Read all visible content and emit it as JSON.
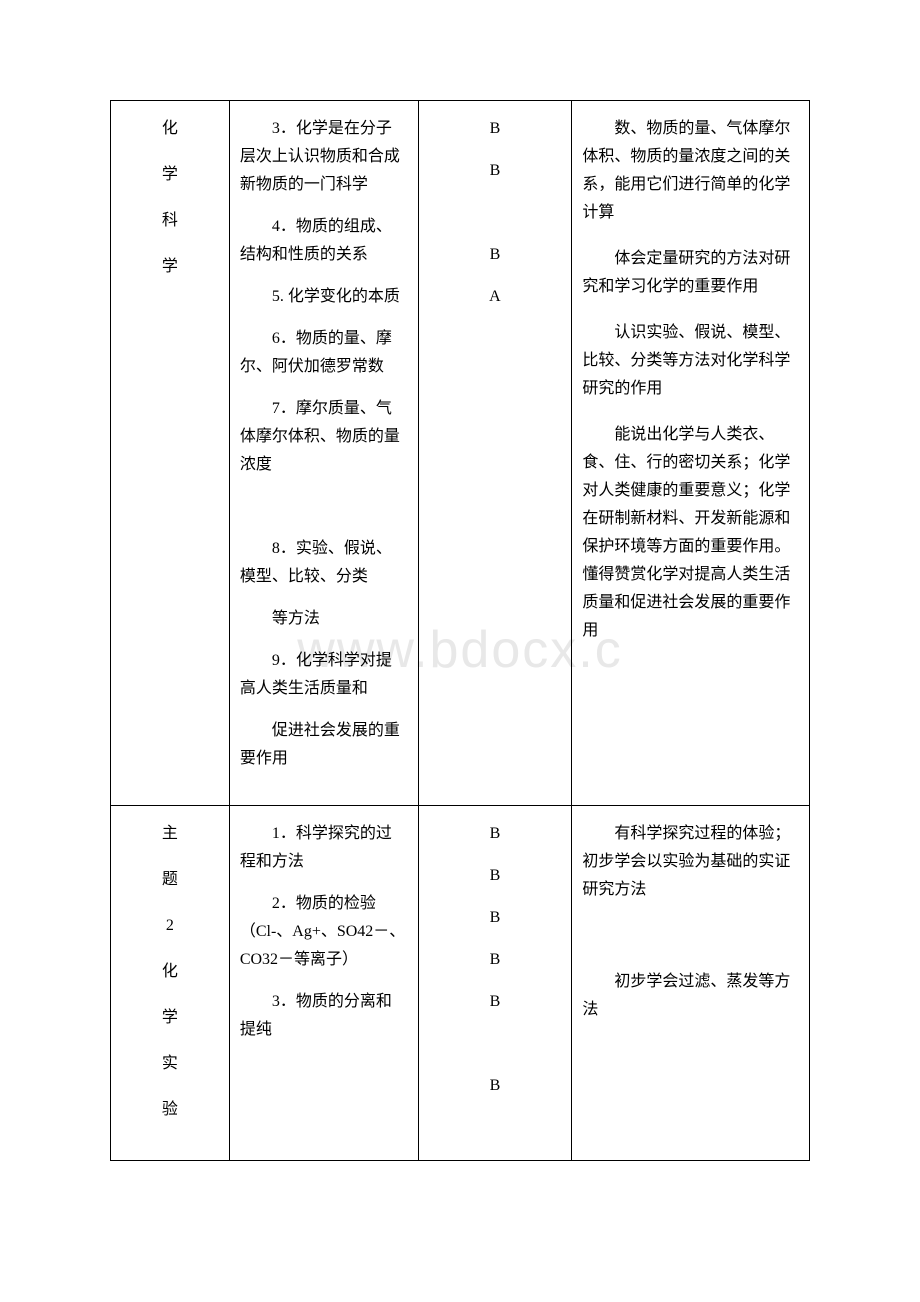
{
  "watermark": "www.bdocx.c",
  "rows": [
    {
      "col1_chars": [
        "化",
        "学",
        "科",
        "学"
      ],
      "col2_items": [
        "3．化学是在分子层次上认识物质和合成新物质的一门科学",
        "4．物质的组成、结构和性质的关系",
        "5. 化学变化的本质",
        "6．物质的量、摩尔、阿伏加德罗常数",
        "7．摩尔质量、气体摩尔体积、物质的量浓度",
        "",
        "8．实验、假说、模型、比较、分类",
        "等方法",
        "9．化学科学对提高人类生活质量和",
        "促进社会发展的重要作用"
      ],
      "col3_grades": [
        "B",
        "B",
        "",
        "B",
        "A"
      ],
      "col4_descs": [
        "数、物质的量、气体摩尔体积、物质的量浓度之间的关系，能用它们进行简单的化学计算",
        "体会定量研究的方法对研究和学习化学的重要作用",
        "认识实验、假说、模型、比较、分类等方法对化学科学研究的作用",
        "能说出化学与人类衣、食、住、行的密切关系；化学对人类健康的重要意义；化学在研制新材料、开发新能源和保护环境等方面的重要作用。懂得赞赏化学对提高人类生活质量和促进社会发展的重要作用"
      ]
    },
    {
      "col1_chars": [
        "主",
        "题",
        "2",
        "化",
        "学",
        "实",
        "验"
      ],
      "col2_items": [
        "1．科学探究的过程和方法",
        "2．物质的检验（Cl-、Ag+、SO42－、CO32－等离子）",
        "3．物质的分离和提纯"
      ],
      "col3_grades": [
        "B",
        "B",
        "B",
        "B",
        "B",
        "",
        "B"
      ],
      "col4_descs": [
        "有科学探究过程的体验；初步学会以实验为基础的实证研究方法",
        "",
        "初步学会过滤、蒸发等方法"
      ]
    }
  ]
}
